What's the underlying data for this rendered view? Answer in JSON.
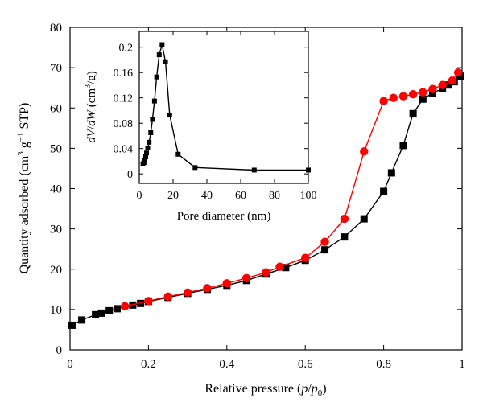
{
  "chart_data": [
    {
      "type": "line",
      "x_label_parts": [
        "Relative pressure (",
        "p",
        "/",
        "p",
        "0",
        ")"
      ],
      "y_label_parts": [
        "Quantity adsorbed (cm",
        "3",
        " g",
        "−1",
        " STP)"
      ],
      "xlim": [
        0,
        1
      ],
      "ylim": [
        0,
        80
      ],
      "x_ticks": [
        "0",
        "0.2",
        "0.4",
        "0.6",
        "0.8",
        "1"
      ],
      "x_tick_values": [
        0,
        0.2,
        0.4,
        0.6,
        0.8,
        1.0
      ],
      "y_ticks": [
        "0",
        "10",
        "20",
        "30",
        "40",
        "50",
        "60",
        "70",
        "80"
      ],
      "y_tick_values": [
        0,
        10,
        20,
        30,
        40,
        50,
        60,
        70,
        80
      ],
      "grid": false,
      "legend": null,
      "series": [
        {
          "marker": "square",
          "color": "#000000",
          "x": [
            0.005,
            0.03,
            0.065,
            0.08,
            0.1,
            0.12,
            0.16,
            0.18,
            0.2,
            0.25,
            0.3,
            0.35,
            0.4,
            0.45,
            0.5,
            0.55,
            0.6,
            0.65,
            0.7,
            0.75,
            0.8,
            0.82,
            0.85,
            0.875,
            0.9,
            0.925,
            0.95,
            0.965,
            0.98,
            0.995
          ],
          "y": [
            6.1,
            7.4,
            8.7,
            9.1,
            9.7,
            10.2,
            11.1,
            11.5,
            12.0,
            13.0,
            14.0,
            15.0,
            16.0,
            17.2,
            18.8,
            20.4,
            22.2,
            24.8,
            28.0,
            32.5,
            39.3,
            43.9,
            50.7,
            58.6,
            62.2,
            63.7,
            64.8,
            65.7,
            66.5,
            67.9
          ]
        },
        {
          "marker": "circle",
          "color": "#ff0000",
          "x": [
            0.14,
            0.2,
            0.25,
            0.3,
            0.35,
            0.4,
            0.45,
            0.5,
            0.535,
            0.6,
            0.65,
            0.7,
            0.75,
            0.8,
            0.825,
            0.85,
            0.875,
            0.9,
            0.925,
            0.95,
            0.975,
            0.99
          ],
          "y": [
            10.8,
            12.1,
            13.2,
            14.2,
            15.3,
            16.5,
            17.8,
            19.2,
            20.6,
            22.8,
            26.8,
            32.5,
            49.2,
            61.7,
            62.5,
            62.9,
            63.4,
            63.9,
            64.7,
            65.7,
            66.8,
            68.8
          ]
        }
      ]
    },
    {
      "type": "line",
      "x_label": "Pore diameter (nm)",
      "y_label_parts": [
        "dV",
        "/",
        "dW",
        " (cm",
        "3",
        "/g)"
      ],
      "xlim": [
        0,
        100
      ],
      "ylim": [
        -0.015,
        0.225
      ],
      "x_ticks": [
        "0",
        "20",
        "40",
        "60",
        "80",
        "100"
      ],
      "x_tick_values": [
        0,
        20,
        40,
        60,
        80,
        100
      ],
      "y_ticks": [
        "0",
        "0.04",
        "0.08",
        "0.12",
        "0.16",
        "0.2"
      ],
      "y_tick_values": [
        0,
        0.04,
        0.08,
        0.12,
        0.16,
        0.2
      ],
      "grid": false,
      "legend": null,
      "series": [
        {
          "marker": "square",
          "color": "#000000",
          "x": [
            2.2,
            2.8,
            3.3,
            3.8,
            4.3,
            5.0,
            5.8,
            6.8,
            7.8,
            9.0,
            10.3,
            11.8,
            13.5,
            15.5,
            18.0,
            23.0,
            33.0,
            68.0,
            100.0
          ],
          "y": [
            0.016,
            0.018,
            0.022,
            0.027,
            0.033,
            0.041,
            0.05,
            0.065,
            0.086,
            0.115,
            0.153,
            0.188,
            0.204,
            0.177,
            0.093,
            0.031,
            0.01,
            0.006,
            0.006
          ]
        }
      ]
    }
  ]
}
